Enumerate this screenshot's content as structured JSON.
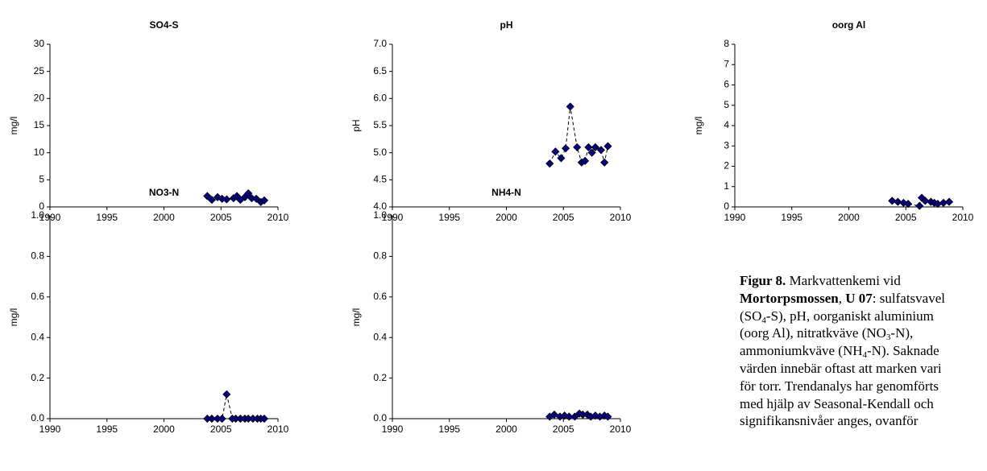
{
  "chart_data": [
    {
      "type": "scatter",
      "title": "SO4-S",
      "y_label": "mg/l",
      "color": "#000080",
      "x": [
        2003.8,
        2004.2,
        2004.7,
        2005.1,
        2005.5,
        2006.1,
        2006.4,
        2006.7,
        2007.1,
        2007.4,
        2007.7,
        2008.1,
        2008.5,
        2008.8
      ],
      "values": [
        2.0,
        1.3,
        1.8,
        1.5,
        1.4,
        1.6,
        2.0,
        1.3,
        1.8,
        2.5,
        1.6,
        1.5,
        0.9,
        1.2
      ],
      "xlim": [
        1990,
        2010
      ],
      "xticks": [
        1990,
        1995,
        2000,
        2005,
        2010
      ],
      "ylim": [
        0,
        30
      ],
      "yticks": [
        0,
        5,
        10,
        15,
        20,
        25,
        30
      ]
    },
    {
      "type": "scatter",
      "title": "pH",
      "y_label": "pH",
      "color": "#000080",
      "x": [
        2003.8,
        2004.3,
        2004.8,
        2005.2,
        2005.6,
        2006.2,
        2006.6,
        2006.9,
        2007.2,
        2007.5,
        2007.8,
        2008.3,
        2008.6,
        2008.9
      ],
      "values": [
        4.8,
        5.02,
        4.9,
        5.08,
        5.85,
        5.1,
        4.82,
        4.85,
        5.1,
        5.0,
        5.1,
        5.05,
        4.82,
        5.12
      ],
      "xlim": [
        1990,
        2010
      ],
      "xticks": [
        1990,
        1995,
        2000,
        2005,
        2010
      ],
      "ylim": [
        4,
        7
      ],
      "yticks": [
        {
          "value": 4,
          "label": "4.0"
        },
        4.5,
        {
          "value": 5,
          "label": "5.0"
        },
        5.5,
        {
          "value": 6,
          "label": "6.0"
        },
        6.5,
        {
          "value": 7,
          "label": "7.0"
        }
      ]
    },
    {
      "type": "scatter",
      "title": "oorg Al",
      "y_label": "mg/l",
      "color": "#000080",
      "x": [
        2003.8,
        2004.3,
        2004.8,
        2005.2,
        2006.2,
        2006.4,
        2006.7,
        2007.2,
        2007.5,
        2007.8,
        2008.3,
        2008.8
      ],
      "values": [
        0.3,
        0.25,
        0.2,
        0.15,
        0.05,
        0.45,
        0.3,
        0.25,
        0.2,
        0.15,
        0.2,
        0.25
      ],
      "xlim": [
        1990,
        2010
      ],
      "xticks": [
        1990,
        1995,
        2000,
        2005,
        2010
      ],
      "ylim": [
        0,
        8
      ],
      "yticks": [
        0,
        1,
        2,
        3,
        4,
        5,
        6,
        7,
        8
      ]
    },
    {
      "type": "scatter",
      "title": "NO3-N",
      "y_label": "mg/l",
      "color": "#000080",
      "x": [
        2003.8,
        2004.2,
        2004.7,
        2005.1,
        2005.5,
        2006.0,
        2006.3,
        2006.7,
        2007.1,
        2007.4,
        2007.8,
        2008.2,
        2008.5,
        2008.8
      ],
      "values": [
        0,
        0,
        0,
        0,
        0.12,
        0,
        0,
        0,
        0,
        0,
        0,
        0,
        0,
        0
      ],
      "xlim": [
        1990,
        2010
      ],
      "xticks": [
        1990,
        1995,
        2000,
        2005,
        2010
      ],
      "ylim": [
        0,
        1
      ],
      "yticks": [
        {
          "value": 0,
          "label": "0.0"
        },
        0.2,
        0.4,
        0.6,
        0.8,
        {
          "value": 1,
          "label": "1.0"
        }
      ]
    },
    {
      "type": "scatter",
      "title": "NH4-N",
      "y_label": "mg/l",
      "color": "#000080",
      "x": [
        2003.8,
        2004.2,
        2004.7,
        2005.1,
        2005.5,
        2006.0,
        2006.4,
        2006.7,
        2007.1,
        2007.4,
        2007.8,
        2008.2,
        2008.6,
        2008.9
      ],
      "values": [
        0.01,
        0.02,
        0.01,
        0.015,
        0.01,
        0.01,
        0.025,
        0.02,
        0.02,
        0.01,
        0.015,
        0.01,
        0.015,
        0.01
      ],
      "xlim": [
        1990,
        2010
      ],
      "xticks": [
        1990,
        1995,
        2000,
        2005,
        2010
      ],
      "ylim": [
        0,
        1
      ],
      "yticks": [
        {
          "value": 0,
          "label": "0.0"
        },
        0.2,
        0.4,
        0.6,
        0.8,
        {
          "value": 1,
          "label": "1.0"
        }
      ]
    }
  ],
  "caption": {
    "lines": [
      [
        {
          "text": "Figur 8.",
          "bold": true
        },
        {
          "text": " Markvattenkemi vid"
        }
      ],
      [
        {
          "text": "Mortorpsmossen",
          "bold": true
        },
        {
          "text": ", "
        },
        {
          "text": "U 07",
          "bold": true
        },
        {
          "text": ": sulfatsvavel"
        }
      ],
      [
        {
          "text": "(SO"
        },
        {
          "text": "4",
          "sub": true
        },
        {
          "text": "-S), pH, oorganiskt aluminium"
        }
      ],
      [
        {
          "text": "(oorg Al), nitratkväve (NO"
        },
        {
          "text": "3",
          "sub": true
        },
        {
          "text": "-N),"
        }
      ],
      [
        {
          "text": "ammoniumkväve (NH"
        },
        {
          "text": "4",
          "sub": true
        },
        {
          "text": "-N). Saknade"
        }
      ],
      [
        {
          "text": "värden innebär oftast att marken vari"
        }
      ],
      [
        {
          "text": "för torr. Trendanalys har genomförts"
        }
      ],
      [
        {
          "text": "med hjälp av Seasonal-Kendall och"
        }
      ],
      [
        {
          "text": "signifikansnivåer anges, ovanför"
        }
      ]
    ]
  }
}
